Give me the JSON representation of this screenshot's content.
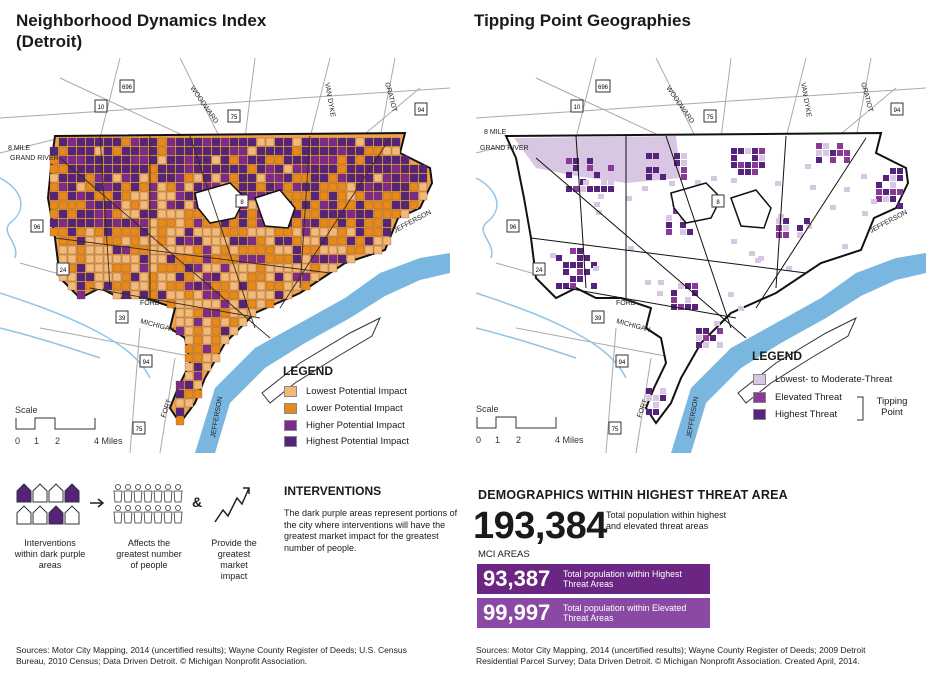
{
  "left_map": {
    "title": "Neighborhood Dynamics Index (Detroit)",
    "labels": {
      "eight_mile": "8 MILE",
      "grand_river": "GRAND RIVER",
      "woodward": "WOODWARD",
      "van_dyke": "VAN DYKE",
      "gratiot": "GRATIOT",
      "jefferson": "JEFFERSON",
      "ford": "FORD",
      "michigan": "MICHIGAN",
      "fort": "FORT",
      "jefferson_south": "JEFFERSON"
    },
    "shields": {
      "i696": "696",
      "r10": "10",
      "r75a": "75",
      "r94a": "94",
      "r8": "8",
      "r96": "96",
      "r24": "24",
      "r39": "39",
      "r94b": "94",
      "r75b": "75"
    },
    "legend": {
      "title": "LEGEND",
      "items": [
        {
          "label": "Lowest Potential Impact",
          "color": "#f3b97a"
        },
        {
          "label": "Lower Potential Impact",
          "color": "#e8891c"
        },
        {
          "label": "Higher Potential Impact",
          "color": "#7c2a8c"
        },
        {
          "label": "Highest Potential Impact",
          "color": "#56237a"
        }
      ]
    },
    "scale": {
      "label": "Scale",
      "t0": "0",
      "t1": "1",
      "t2": "2",
      "t4": "4 Miles"
    }
  },
  "right_map": {
    "title": "Tipping Point Geographies",
    "labels": {
      "eight_mile": "8 MILE",
      "grand_river": "GRAND RIVER",
      "woodward": "WOODWARD",
      "van_dyke": "VAN DYKE",
      "gratiot": "GRATIOT",
      "jefferson": "JEFFERSON",
      "ford": "FORD",
      "michigan": "MICHIGAN",
      "fort": "FORT",
      "jefferson_south": "JEFFERSON"
    },
    "shields": {
      "i696": "696",
      "r10": "10",
      "r75a": "75",
      "r94a": "94",
      "r8": "8",
      "r96": "96",
      "r24": "24",
      "r39": "39",
      "r94b": "94",
      "r75b": "75"
    },
    "legend": {
      "title": "LEGEND",
      "items": [
        {
          "label": "Lowest- to Moderate-Threat",
          "color": "#d8c6e3"
        },
        {
          "label": "Elevated Threat",
          "color": "#8a3a96"
        },
        {
          "label": "Highest Threat",
          "color": "#56237a"
        }
      ],
      "bracket_label": "Tipping Point"
    },
    "scale": {
      "label": "Scale",
      "t0": "0",
      "t1": "1",
      "t2": "2",
      "t4": "4 Miles"
    }
  },
  "interventions": {
    "title": "INTERVENTIONS",
    "body": "The dark purple areas represent portions of the city where interventions will have the greatest market impact for the greatest number of people.",
    "caption_houses": "Interventions within dark purple areas",
    "caption_people": "Affects the greatest number of people",
    "ampersand": "&",
    "caption_market": "Provide the greatest market impact"
  },
  "demographics": {
    "title": "DEMOGRAPHICS WITHIN HIGHEST THREAT AREA",
    "total_number": "193,384",
    "total_desc": "Total population within highest and elevated threat areas",
    "mci_label": "MCI AREAS",
    "bars": [
      {
        "number": "93,387",
        "desc": "Total population within Highest Threat Areas",
        "color": "#6b2583"
      },
      {
        "number": "99,997",
        "desc": "Total population within Elevated Threat Areas",
        "color": "#8a4aa3"
      }
    ]
  },
  "sources": {
    "left": "Sources: Motor City Mapping, 2014 (uncertified results); Wayne County Register of Deeds; U.S. Census Bureau, 2010 Census; Data Driven Detroit. © Michigan Nonprofit Association.",
    "right": "Sources: Motor City Mapping, 2014 (uncertified results); Wayne County Register of Deeds; 2009 Detroit Residential Parcel Survey; Data Driven Detroit. © Michigan Nonprofit Association. Created April, 2014."
  }
}
